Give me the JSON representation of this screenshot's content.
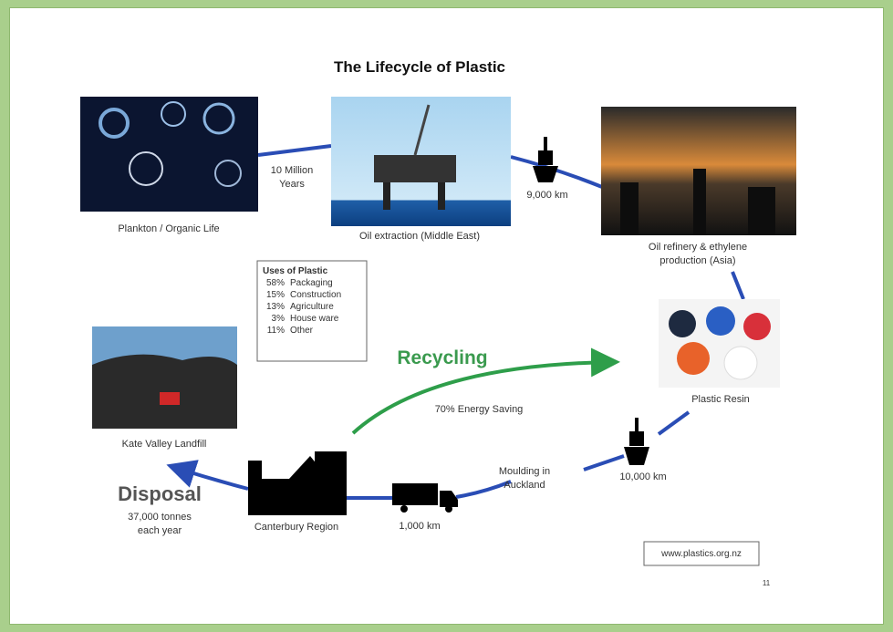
{
  "title": "The Lifecycle of Plastic",
  "nodes": [
    {
      "label": [
        "Plankton / Organic Life"
      ]
    },
    {
      "label": [
        "Oil extraction (Middle East)"
      ]
    },
    {
      "label": [
        "Oil refinery & ethylene",
        "production (Asia)"
      ]
    },
    {
      "label": [
        "Plastic Resin"
      ]
    },
    {
      "label": [
        "Moulding in",
        "Auckland"
      ]
    },
    {
      "label": [
        "Canterbury Region"
      ]
    },
    {
      "label": [
        "Kate Valley Landfill"
      ]
    }
  ],
  "edges": [
    {
      "label": [
        "10 Million",
        "Years"
      ]
    },
    {
      "label": [
        "9,000 km"
      ]
    },
    {
      "label": [
        "10,000 km"
      ]
    },
    {
      "label": [
        "1,000 km"
      ]
    }
  ],
  "recycling": {
    "title": "Recycling",
    "label": "70% Energy Saving"
  },
  "disposal": {
    "title": "Disposal",
    "label": [
      "37,000 tonnes",
      "each year"
    ]
  },
  "uses": {
    "title": "Uses of Plastic",
    "rows": [
      [
        "58%",
        "Packaging"
      ],
      [
        "15%",
        "Construction"
      ],
      [
        "13%",
        "Agriculture"
      ],
      [
        "3%",
        "House ware"
      ],
      [
        "11%",
        "Other"
      ]
    ]
  },
  "footer": {
    "url": "www.plastics.org.nz",
    "page": "11"
  }
}
